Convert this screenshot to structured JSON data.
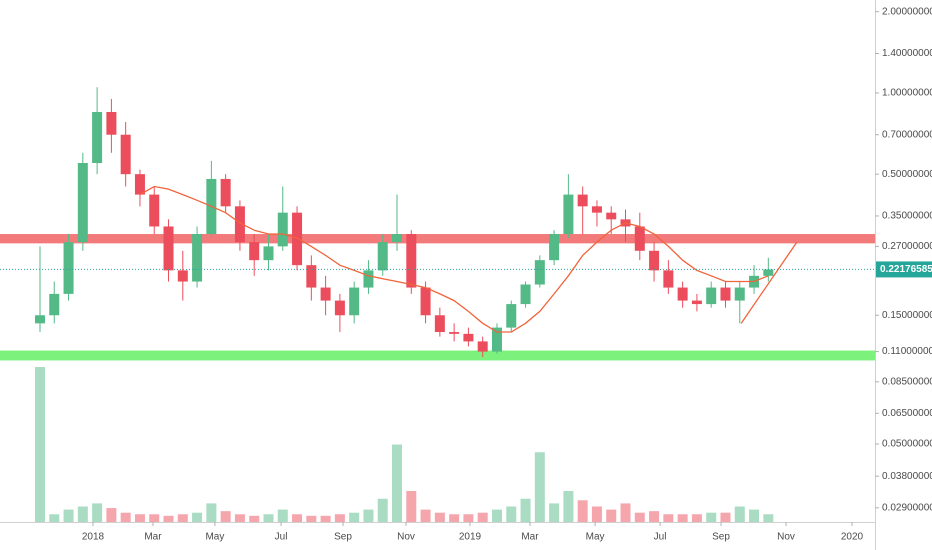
{
  "chart_data": {
    "type": "candlestick",
    "log_scale": true,
    "up_color": "#53b987",
    "down_color": "#eb4d5c",
    "xlim": [
      -2.8,
      58.47
    ],
    "xticks": [
      {
        "value": 3.71,
        "label": "2018"
      },
      {
        "value": 7.91,
        "label": "Mar"
      },
      {
        "value": 12.25,
        "label": "May"
      },
      {
        "value": 16.88,
        "label": "Jul"
      },
      {
        "value": 21.22,
        "label": "Sep"
      },
      {
        "value": 25.63,
        "label": "Nov"
      },
      {
        "value": 30.11,
        "label": "2019"
      },
      {
        "value": 34.31,
        "label": "Mar"
      },
      {
        "value": 38.87,
        "label": "May"
      },
      {
        "value": 43.42,
        "label": "Jul"
      },
      {
        "value": 47.69,
        "label": "Sep"
      },
      {
        "value": 52.24,
        "label": "Nov"
      },
      {
        "value": 56.86,
        "label": "2020"
      }
    ],
    "ylim": [
      0.0257,
      2.21
    ],
    "yticks": [
      {
        "value": 2.0,
        "label": "2.00000000"
      },
      {
        "value": 1.4,
        "label": "1.40000000"
      },
      {
        "value": 1.0,
        "label": "1.00000000"
      },
      {
        "value": 0.7,
        "label": "0.70000000"
      },
      {
        "value": 0.5,
        "label": "0.50000000"
      },
      {
        "value": 0.35,
        "label": "0.35000000"
      },
      {
        "value": 0.27,
        "label": "0.27000000"
      },
      {
        "value": 0.15,
        "label": "0.15000000"
      },
      {
        "value": 0.11,
        "label": "0.11000000"
      },
      {
        "value": 0.085,
        "label": "0.08500000"
      },
      {
        "value": 0.065,
        "label": "0.06500000"
      },
      {
        "value": 0.05,
        "label": "0.05000000"
      },
      {
        "value": 0.038,
        "label": "0.03800000"
      },
      {
        "value": 0.029,
        "label": "0.02900000"
      }
    ],
    "last_price": {
      "value": 0.22176585,
      "label": "0.22176585",
      "color": "#26a69a"
    },
    "candles": [
      [
        0.14,
        0.27,
        0.13,
        0.15
      ],
      [
        0.15,
        0.2,
        0.14,
        0.18
      ],
      [
        0.18,
        0.3,
        0.17,
        0.28
      ],
      [
        0.28,
        0.6,
        0.26,
        0.55
      ],
      [
        0.55,
        1.05,
        0.5,
        0.85
      ],
      [
        0.85,
        0.95,
        0.6,
        0.7
      ],
      [
        0.7,
        0.78,
        0.45,
        0.5
      ],
      [
        0.5,
        0.52,
        0.38,
        0.42
      ],
      [
        0.42,
        0.45,
        0.3,
        0.32
      ],
      [
        0.32,
        0.34,
        0.2,
        0.22
      ],
      [
        0.22,
        0.26,
        0.17,
        0.2
      ],
      [
        0.2,
        0.32,
        0.19,
        0.3
      ],
      [
        0.3,
        0.56,
        0.29,
        0.48
      ],
      [
        0.48,
        0.5,
        0.36,
        0.38
      ],
      [
        0.38,
        0.4,
        0.26,
        0.28
      ],
      [
        0.28,
        0.3,
        0.21,
        0.24
      ],
      [
        0.24,
        0.3,
        0.22,
        0.27
      ],
      [
        0.27,
        0.45,
        0.26,
        0.36
      ],
      [
        0.36,
        0.38,
        0.22,
        0.23
      ],
      [
        0.23,
        0.25,
        0.17,
        0.19
      ],
      [
        0.19,
        0.21,
        0.15,
        0.17
      ],
      [
        0.17,
        0.18,
        0.13,
        0.15
      ],
      [
        0.15,
        0.2,
        0.14,
        0.19
      ],
      [
        0.19,
        0.24,
        0.18,
        0.22
      ],
      [
        0.22,
        0.3,
        0.21,
        0.28
      ],
      [
        0.28,
        0.42,
        0.26,
        0.3
      ],
      [
        0.3,
        0.31,
        0.18,
        0.19
      ],
      [
        0.19,
        0.2,
        0.14,
        0.15
      ],
      [
        0.15,
        0.16,
        0.125,
        0.13
      ],
      [
        0.13,
        0.14,
        0.12,
        0.128
      ],
      [
        0.128,
        0.135,
        0.115,
        0.12
      ],
      [
        0.12,
        0.125,
        0.105,
        0.11
      ],
      [
        0.11,
        0.14,
        0.108,
        0.135
      ],
      [
        0.135,
        0.17,
        0.13,
        0.165
      ],
      [
        0.165,
        0.2,
        0.16,
        0.195
      ],
      [
        0.195,
        0.25,
        0.19,
        0.24
      ],
      [
        0.24,
        0.31,
        0.23,
        0.3
      ],
      [
        0.3,
        0.5,
        0.29,
        0.42
      ],
      [
        0.42,
        0.45,
        0.3,
        0.38
      ],
      [
        0.38,
        0.4,
        0.32,
        0.36
      ],
      [
        0.36,
        0.38,
        0.3,
        0.34
      ],
      [
        0.34,
        0.37,
        0.28,
        0.32
      ],
      [
        0.32,
        0.36,
        0.24,
        0.26
      ],
      [
        0.26,
        0.28,
        0.2,
        0.22
      ],
      [
        0.22,
        0.24,
        0.18,
        0.19
      ],
      [
        0.19,
        0.2,
        0.16,
        0.17
      ],
      [
        0.17,
        0.18,
        0.155,
        0.165
      ],
      [
        0.165,
        0.2,
        0.16,
        0.19
      ],
      [
        0.19,
        0.2,
        0.16,
        0.17
      ],
      [
        0.17,
        0.2,
        0.14,
        0.19
      ],
      [
        0.19,
        0.23,
        0.18,
        0.21
      ],
      [
        0.21,
        0.245,
        0.2,
        0.2218
      ]
    ],
    "volumes": [
      100,
      5,
      8,
      10,
      12,
      9,
      6,
      5,
      5,
      4,
      5,
      6,
      12,
      7,
      5,
      4,
      5,
      8,
      5,
      4,
      4,
      5,
      6,
      8,
      15,
      50,
      20,
      8,
      6,
      5,
      5,
      6,
      8,
      10,
      15,
      45,
      12,
      20,
      14,
      10,
      8,
      12,
      6,
      7,
      5,
      5,
      5,
      6,
      6,
      10,
      8,
      5
    ],
    "moving_average": {
      "color": "#f0643c",
      "values": [
        null,
        null,
        null,
        null,
        null,
        null,
        null,
        0.42,
        0.45,
        0.44,
        0.42,
        0.4,
        0.38,
        0.36,
        0.33,
        0.31,
        0.3,
        0.3,
        0.29,
        0.27,
        0.25,
        0.23,
        0.22,
        0.21,
        0.205,
        0.2,
        0.195,
        0.19,
        0.18,
        0.17,
        0.155,
        0.14,
        0.13,
        0.13,
        0.14,
        0.155,
        0.18,
        0.21,
        0.25,
        0.28,
        0.31,
        0.33,
        0.32,
        0.3,
        0.27,
        0.24,
        0.22,
        0.21,
        0.2,
        0.2,
        0.2,
        0.21
      ]
    },
    "zones": [
      {
        "from": 0.277,
        "to": 0.3,
        "color": "#f26b6b"
      },
      {
        "from": 0.102,
        "to": 0.111,
        "color": "#6ef06e"
      }
    ],
    "trendline": {
      "x": [
        49.1,
        53.0
      ],
      "values": [
        0.14,
        0.28
      ],
      "color": "#f0643c"
    }
  }
}
